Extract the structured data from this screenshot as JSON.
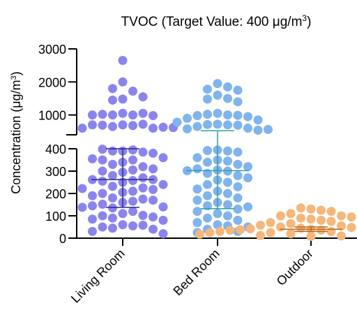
{
  "chart_data": {
    "type": "scatter",
    "title": "TVOC (Target Value: 400 μg/m",
    "title_superscript": "3",
    "title_suffix": ")",
    "ylabel": "Concentration (μg/m",
    "ylabel_superscript": "3",
    "ylabel_suffix": ")",
    "y_axis": {
      "broken": true,
      "lower_range": [
        0,
        400
      ],
      "upper_range": [
        400,
        3000
      ],
      "lower_ticks": [
        "0",
        "100",
        "200",
        "300",
        "400"
      ],
      "upper_ticks": [
        "1000",
        "2000",
        "3000"
      ]
    },
    "categories": [
      "Living Room",
      "Bed Room",
      "Outdoor"
    ],
    "colors": {
      "Living Room": "#8a84ee",
      "Bed Room": "#7fb4ee",
      "Outdoor": "#f5b77a",
      "Living Room_line": "#2b2a8c",
      "Bed Room_line": "#2aa1a8",
      "Outdoor_line": "#b86b1e"
    },
    "summary": [
      {
        "name": "Living Room",
        "mean": 262,
        "sd_low": 138,
        "sd_high": 400
      },
      {
        "name": "Bed Room",
        "mean": 302,
        "sd_low": 132,
        "sd_high": 525
      },
      {
        "name": "Outdoor",
        "mean": 40,
        "sd_low": 30,
        "sd_high": 50
      }
    ],
    "series": [
      {
        "name": "Living Room",
        "values": [
          2650,
          2000,
          1720,
          1800,
          1480,
          1550,
          1450,
          1050,
          1000,
          1000,
          1050,
          1020,
          980,
          1000,
          700,
          680,
          720,
          650,
          690,
          700,
          600,
          630,
          600,
          620,
          390,
          395,
          390,
          385,
          398,
          380,
          355,
          360,
          350,
          340,
          350,
          330,
          320,
          310,
          305,
          300,
          295,
          280,
          270,
          262,
          262,
          258,
          255,
          250,
          240,
          232,
          225,
          222,
          218,
          210,
          205,
          200,
          190,
          180,
          175,
          170,
          165,
          160,
          152,
          145,
          140,
          138,
          135,
          120,
          110,
          102,
          100,
          95,
          90,
          85,
          80,
          60,
          55,
          58,
          50,
          45,
          40,
          30,
          20
        ]
      },
      {
        "name": "Bed Room",
        "values": [
          1950,
          1850,
          1780,
          1750,
          1600,
          1500,
          1480,
          1400,
          1050,
          1000,
          1020,
          990,
          980,
          950,
          900,
          850,
          780,
          720,
          700,
          710,
          690,
          650,
          600,
          580,
          560,
          540,
          395,
          390,
          392,
          385,
          360,
          350,
          345,
          340,
          330,
          320,
          310,
          305,
          302,
          300,
          290,
          280,
          270,
          260,
          250,
          240,
          230,
          220,
          210,
          200,
          190,
          180,
          170,
          160,
          150,
          145,
          140,
          130,
          120,
          110,
          100,
          90,
          80,
          70,
          60,
          55,
          50,
          40,
          30,
          25
        ]
      },
      {
        "name": "Outdoor",
        "values": [
          130,
          125,
          135,
          120,
          110,
          100,
          100,
          95,
          90,
          85,
          80,
          75,
          70,
          65,
          60,
          58,
          55,
          50,
          48,
          45,
          45,
          42,
          40,
          40,
          38,
          36,
          35,
          35,
          32,
          30,
          30,
          28,
          25,
          25,
          22,
          20,
          18,
          15,
          12,
          10,
          8
        ]
      }
    ]
  }
}
